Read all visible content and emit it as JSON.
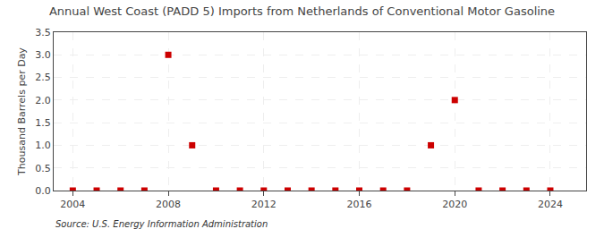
{
  "chart_data": {
    "type": "scatter",
    "title": "Annual West Coast (PADD 5) Imports from Netherlands of Conventional Motor Gasoline",
    "ylabel": "Thousand Barrels per Day",
    "annotations": [
      "Source: U.S. Energy Information Administration"
    ],
    "x": [
      2004,
      2005,
      2006,
      2007,
      2008,
      2009,
      2010,
      2011,
      2012,
      2013,
      2014,
      2015,
      2016,
      2017,
      2018,
      2019,
      2020,
      2021,
      2022,
      2023,
      2024
    ],
    "values": [
      0.0,
      0.0,
      0.0,
      0.0,
      3.0,
      1.0,
      0.0,
      0.0,
      0.0,
      0.0,
      0.0,
      0.0,
      0.0,
      0.0,
      0.0,
      1.0,
      2.0,
      0.0,
      0.0,
      0.0,
      0.0
    ],
    "color": "#cc0000",
    "marker": "square",
    "xlim": [
      2003.2,
      2025.5
    ],
    "xticks": [
      2004,
      2008,
      2012,
      2016,
      2020,
      2024
    ],
    "ylim": [
      0.0,
      3.5
    ],
    "yticks": [
      {
        "value": 0.0,
        "label": "0.0"
      },
      0.5,
      {
        "value": 1.0,
        "label": "1.0"
      },
      1.5,
      {
        "value": 2.0,
        "label": "2.0"
      },
      2.5,
      {
        "value": 3.0,
        "label": "3.0"
      },
      3.5
    ],
    "grid": true
  }
}
